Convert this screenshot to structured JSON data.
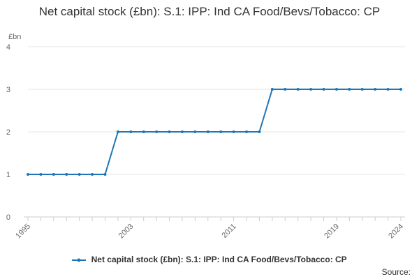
{
  "chart_data": {
    "type": "line",
    "title": "Net capital stock (£bn): S.1: IPP: Ind CA Food/Bevs/Tobacco: CP",
    "ylabel": "£bn",
    "xlabel": "",
    "ylim": [
      0,
      4
    ],
    "yticks": [
      0,
      1,
      2,
      3,
      4
    ],
    "xlim": [
      1995,
      2024
    ],
    "xticks": [
      1995,
      2003,
      2011,
      2019,
      2024
    ],
    "grid": true,
    "legend": "bottom",
    "series": [
      {
        "name": "Net capital stock (£bn): S.1: IPP: Ind CA Food/Bevs/Tobacco: CP",
        "color": "#1f77b4",
        "x": [
          1995,
          1996,
          1997,
          1998,
          1999,
          2000,
          2001,
          2002,
          2003,
          2004,
          2005,
          2006,
          2007,
          2008,
          2009,
          2010,
          2011,
          2012,
          2013,
          2014,
          2015,
          2016,
          2017,
          2018,
          2019,
          2020,
          2021,
          2022,
          2023,
          2024
        ],
        "values": [
          1,
          1,
          1,
          1,
          1,
          1,
          1,
          2,
          2,
          2,
          2,
          2,
          2,
          2,
          2,
          2,
          2,
          2,
          2,
          3,
          3,
          3,
          3,
          3,
          3,
          3,
          3,
          3,
          3,
          3
        ]
      }
    ]
  },
  "source_label": "Source:"
}
